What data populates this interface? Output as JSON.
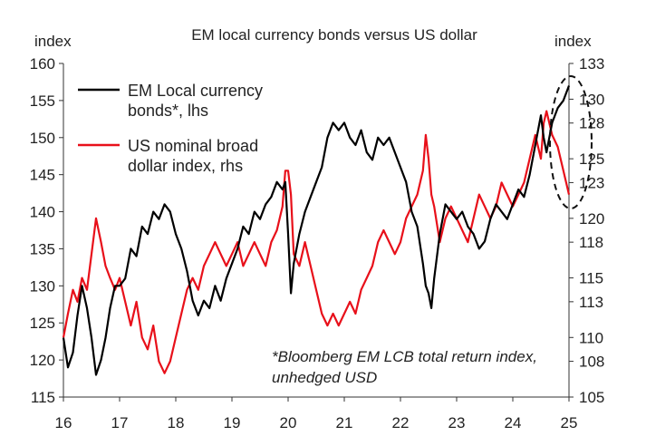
{
  "chart_data": {
    "type": "line",
    "title": "EM local currency bonds versus US dollar",
    "left_axis": {
      "unit_label": "index",
      "range": [
        115,
        160
      ],
      "ticks": [
        115,
        120,
        125,
        130,
        135,
        140,
        145,
        150,
        155,
        160
      ]
    },
    "right_axis": {
      "unit_label": "index",
      "range": [
        105,
        133
      ],
      "ticks": [
        105,
        108,
        110,
        113,
        115,
        118,
        120,
        123,
        125,
        128,
        130,
        133
      ]
    },
    "x_axis": {
      "range": [
        16,
        25
      ],
      "tick_labels": [
        "16",
        "17",
        "18",
        "19",
        "20",
        "21",
        "22",
        "23",
        "24",
        "25"
      ]
    },
    "grid": false,
    "legend": {
      "position": "top-left"
    },
    "series": [
      {
        "name": "EM Local currency bonds*, lhs",
        "axis": "left",
        "color": "#000000",
        "points": [
          [
            16.0,
            123
          ],
          [
            16.08,
            119
          ],
          [
            16.17,
            121
          ],
          [
            16.25,
            126
          ],
          [
            16.33,
            130
          ],
          [
            16.42,
            127
          ],
          [
            16.5,
            123
          ],
          [
            16.58,
            118
          ],
          [
            16.67,
            120
          ],
          [
            16.75,
            123
          ],
          [
            16.83,
            127
          ],
          [
            16.92,
            130
          ],
          [
            17.0,
            130
          ],
          [
            17.1,
            131
          ],
          [
            17.2,
            135
          ],
          [
            17.3,
            134
          ],
          [
            17.4,
            138
          ],
          [
            17.5,
            137
          ],
          [
            17.6,
            140
          ],
          [
            17.7,
            139
          ],
          [
            17.8,
            141
          ],
          [
            17.9,
            140
          ],
          [
            18.0,
            137
          ],
          [
            18.1,
            135
          ],
          [
            18.2,
            132
          ],
          [
            18.3,
            128
          ],
          [
            18.4,
            126
          ],
          [
            18.5,
            128
          ],
          [
            18.6,
            127
          ],
          [
            18.7,
            130
          ],
          [
            18.8,
            128
          ],
          [
            18.9,
            131
          ],
          [
            19.0,
            133
          ],
          [
            19.1,
            135
          ],
          [
            19.2,
            138
          ],
          [
            19.3,
            137
          ],
          [
            19.4,
            140
          ],
          [
            19.5,
            139
          ],
          [
            19.6,
            141
          ],
          [
            19.7,
            142
          ],
          [
            19.8,
            144
          ],
          [
            19.9,
            143
          ],
          [
            19.95,
            144
          ],
          [
            20.0,
            137
          ],
          [
            20.05,
            129
          ],
          [
            20.1,
            133
          ],
          [
            20.2,
            137
          ],
          [
            20.3,
            140
          ],
          [
            20.4,
            142
          ],
          [
            20.5,
            144
          ],
          [
            20.6,
            146
          ],
          [
            20.7,
            150
          ],
          [
            20.8,
            152
          ],
          [
            20.9,
            151
          ],
          [
            21.0,
            152
          ],
          [
            21.1,
            150
          ],
          [
            21.2,
            149
          ],
          [
            21.3,
            151
          ],
          [
            21.4,
            148
          ],
          [
            21.5,
            147
          ],
          [
            21.6,
            150
          ],
          [
            21.7,
            149
          ],
          [
            21.8,
            150
          ],
          [
            21.9,
            148
          ],
          [
            22.0,
            146
          ],
          [
            22.1,
            144
          ],
          [
            22.2,
            140
          ],
          [
            22.3,
            138
          ],
          [
            22.4,
            133
          ],
          [
            22.45,
            130
          ],
          [
            22.5,
            129
          ],
          [
            22.55,
            127
          ],
          [
            22.6,
            131
          ],
          [
            22.7,
            137
          ],
          [
            22.8,
            141
          ],
          [
            22.9,
            140
          ],
          [
            23.0,
            139
          ],
          [
            23.1,
            140
          ],
          [
            23.2,
            138
          ],
          [
            23.3,
            137
          ],
          [
            23.4,
            135
          ],
          [
            23.5,
            136
          ],
          [
            23.6,
            139
          ],
          [
            23.7,
            141
          ],
          [
            23.8,
            140
          ],
          [
            23.9,
            139
          ],
          [
            24.0,
            141
          ],
          [
            24.1,
            143
          ],
          [
            24.2,
            142
          ],
          [
            24.3,
            145
          ],
          [
            24.4,
            149
          ],
          [
            24.5,
            153
          ],
          [
            24.55,
            150
          ],
          [
            24.6,
            148
          ],
          [
            24.7,
            152
          ],
          [
            24.8,
            154
          ],
          [
            24.9,
            155
          ],
          [
            25.0,
            157
          ]
        ]
      },
      {
        "name": "US nominal broad dollar index, rhs",
        "axis": "right",
        "color": "#e8101a",
        "points": [
          [
            16.0,
            110
          ],
          [
            16.08,
            112
          ],
          [
            16.17,
            114
          ],
          [
            16.25,
            113
          ],
          [
            16.33,
            115
          ],
          [
            16.42,
            114
          ],
          [
            16.5,
            117
          ],
          [
            16.58,
            120
          ],
          [
            16.67,
            118
          ],
          [
            16.75,
            116
          ],
          [
            16.83,
            115
          ],
          [
            16.92,
            114
          ],
          [
            17.0,
            115
          ],
          [
            17.1,
            113
          ],
          [
            17.2,
            111
          ],
          [
            17.3,
            113
          ],
          [
            17.4,
            110
          ],
          [
            17.5,
            109
          ],
          [
            17.6,
            111
          ],
          [
            17.7,
            108
          ],
          [
            17.8,
            107
          ],
          [
            17.9,
            108
          ],
          [
            18.0,
            110
          ],
          [
            18.1,
            112
          ],
          [
            18.2,
            114
          ],
          [
            18.3,
            115
          ],
          [
            18.4,
            114
          ],
          [
            18.5,
            116
          ],
          [
            18.6,
            117
          ],
          [
            18.7,
            118
          ],
          [
            18.8,
            117
          ],
          [
            18.9,
            116
          ],
          [
            19.0,
            117
          ],
          [
            19.1,
            118
          ],
          [
            19.2,
            116
          ],
          [
            19.3,
            117
          ],
          [
            19.4,
            118
          ],
          [
            19.5,
            117
          ],
          [
            19.6,
            116
          ],
          [
            19.7,
            118
          ],
          [
            19.8,
            119
          ],
          [
            19.9,
            121
          ],
          [
            19.95,
            124
          ],
          [
            20.0,
            124
          ],
          [
            20.05,
            122
          ],
          [
            20.1,
            117
          ],
          [
            20.2,
            116
          ],
          [
            20.3,
            118
          ],
          [
            20.4,
            116
          ],
          [
            20.5,
            114
          ],
          [
            20.6,
            112
          ],
          [
            20.7,
            111
          ],
          [
            20.8,
            112
          ],
          [
            20.9,
            111
          ],
          [
            21.0,
            112
          ],
          [
            21.1,
            113
          ],
          [
            21.2,
            112
          ],
          [
            21.3,
            114
          ],
          [
            21.4,
            115
          ],
          [
            21.5,
            116
          ],
          [
            21.6,
            118
          ],
          [
            21.7,
            119
          ],
          [
            21.8,
            118
          ],
          [
            21.9,
            117
          ],
          [
            22.0,
            118
          ],
          [
            22.1,
            120
          ],
          [
            22.2,
            121
          ],
          [
            22.3,
            122
          ],
          [
            22.4,
            124
          ],
          [
            22.45,
            127
          ],
          [
            22.5,
            125
          ],
          [
            22.55,
            122
          ],
          [
            22.6,
            121
          ],
          [
            22.7,
            118
          ],
          [
            22.8,
            120
          ],
          [
            22.9,
            121
          ],
          [
            23.0,
            120
          ],
          [
            23.1,
            119
          ],
          [
            23.2,
            118
          ],
          [
            23.3,
            120
          ],
          [
            23.4,
            122
          ],
          [
            23.5,
            121
          ],
          [
            23.6,
            120
          ],
          [
            23.7,
            121
          ],
          [
            23.8,
            123
          ],
          [
            23.9,
            122
          ],
          [
            24.0,
            121
          ],
          [
            24.1,
            122
          ],
          [
            24.2,
            123
          ],
          [
            24.3,
            125
          ],
          [
            24.4,
            127
          ],
          [
            24.5,
            125
          ],
          [
            24.55,
            128
          ],
          [
            24.6,
            129
          ],
          [
            24.7,
            127
          ],
          [
            24.8,
            126
          ],
          [
            24.9,
            124
          ],
          [
            25.0,
            122
          ]
        ]
      }
    ],
    "annotations": [
      {
        "type": "dashed-ellipse",
        "around": "latest values"
      },
      {
        "type": "note",
        "lines": [
          "*Bloomberg EM LCB total return index,",
          "unhedged USD"
        ]
      }
    ]
  }
}
